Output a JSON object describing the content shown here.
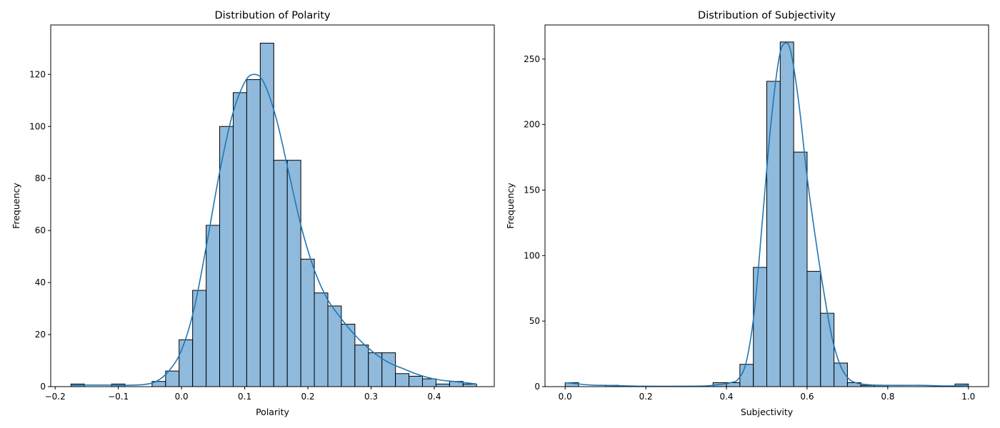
{
  "chart_data": [
    {
      "type": "bar",
      "title": "Distribution of Polarity",
      "xlabel": "Polarity",
      "ylabel": "Frequency",
      "xlim": [
        -0.207,
        0.495
      ],
      "ylim": [
        0,
        139
      ],
      "xticks": [
        -0.2,
        -0.1,
        0.0,
        0.1,
        0.2,
        0.3,
        0.4
      ],
      "xtick_labels": [
        "−0.2",
        "−0.1",
        "0.0",
        "0.1",
        "0.2",
        "0.3",
        "0.4"
      ],
      "yticks": [
        0,
        20,
        40,
        60,
        80,
        100,
        120
      ],
      "ytick_labels": [
        "0",
        "20",
        "40",
        "60",
        "80",
        "100",
        "120"
      ],
      "bin_edges": [
        -0.175,
        -0.1536,
        -0.1322,
        -0.1108,
        -0.0894,
        -0.068,
        -0.0466,
        -0.0252,
        -0.0038,
        0.0176,
        0.039,
        0.0604,
        0.0818,
        0.1032,
        0.1246,
        0.146,
        0.1674,
        0.1888,
        0.2102,
        0.2316,
        0.253,
        0.2744,
        0.2958,
        0.3172,
        0.3386,
        0.36,
        0.3814,
        0.4028,
        0.4242,
        0.4456,
        0.467
      ],
      "values": [
        1,
        0,
        0,
        1,
        0,
        0,
        2,
        6,
        18,
        37,
        62,
        100,
        113,
        118,
        132,
        87,
        87,
        49,
        36,
        31,
        24,
        16,
        13,
        13,
        5,
        4,
        3,
        1,
        2,
        1
      ],
      "kde": {
        "x": [
          -0.175,
          -0.15,
          -0.12,
          -0.09,
          -0.06,
          -0.04,
          -0.02,
          0.0,
          0.02,
          0.04,
          0.06,
          0.08,
          0.1,
          0.115,
          0.13,
          0.15,
          0.17,
          0.19,
          0.21,
          0.23,
          0.25,
          0.27,
          0.29,
          0.31,
          0.33,
          0.35,
          0.37,
          0.39,
          0.41,
          0.43,
          0.45,
          0.467
        ],
        "y": [
          0.5,
          0.6,
          0.6,
          0.5,
          0.8,
          2,
          6,
          14,
          30,
          55,
          82,
          104,
          117,
          120,
          117,
          103,
          82,
          61,
          45,
          34,
          27,
          21,
          16,
          12,
          9,
          7,
          5,
          3.5,
          2.5,
          2,
          1.5,
          1
        ]
      }
    },
    {
      "type": "bar",
      "title": "Distribution of Subjectivity",
      "xlabel": "Subjectivity",
      "ylabel": "Frequency",
      "xlim": [
        -0.05,
        1.05
      ],
      "ylim": [
        0,
        276
      ],
      "xticks": [
        0.0,
        0.2,
        0.4,
        0.6,
        0.8,
        1.0
      ],
      "xtick_labels": [
        "0.0",
        "0.2",
        "0.4",
        "0.6",
        "0.8",
        "1.0"
      ],
      "yticks": [
        0,
        50,
        100,
        150,
        200,
        250
      ],
      "ytick_labels": [
        "0",
        "50",
        "100",
        "150",
        "200",
        "250"
      ],
      "bin_edges": [
        0.0,
        0.0333,
        0.0667,
        0.1,
        0.1333,
        0.1667,
        0.2,
        0.2333,
        0.2667,
        0.3,
        0.3333,
        0.3667,
        0.4,
        0.4333,
        0.4667,
        0.5,
        0.5333,
        0.5667,
        0.6,
        0.6333,
        0.6667,
        0.7,
        0.7333,
        0.7667,
        0.8,
        0.8333,
        0.8667,
        0.9,
        0.9333,
        0.9667,
        1.0
      ],
      "values": [
        3,
        0,
        0,
        1,
        0,
        0,
        0,
        0,
        0,
        0,
        0,
        3,
        3,
        17,
        91,
        233,
        263,
        179,
        88,
        56,
        18,
        3,
        1,
        1,
        0,
        0,
        0,
        0,
        0,
        2
      ],
      "kde": {
        "x": [
          0.0,
          0.02,
          0.05,
          0.08,
          0.1,
          0.13,
          0.2,
          0.3,
          0.35,
          0.38,
          0.41,
          0.43,
          0.45,
          0.47,
          0.49,
          0.51,
          0.53,
          0.545,
          0.56,
          0.58,
          0.6,
          0.62,
          0.64,
          0.66,
          0.68,
          0.7,
          0.72,
          0.75,
          0.8,
          0.88,
          0.95,
          1.0
        ],
        "y": [
          3,
          2.5,
          1.5,
          1,
          1,
          0.7,
          0.3,
          0.3,
          0.6,
          1.5,
          3,
          6,
          20,
          60,
          130,
          200,
          250,
          262,
          255,
          215,
          160,
          115,
          75,
          40,
          18,
          7,
          3,
          1.5,
          1,
          1,
          0.5,
          1
        ]
      }
    }
  ]
}
